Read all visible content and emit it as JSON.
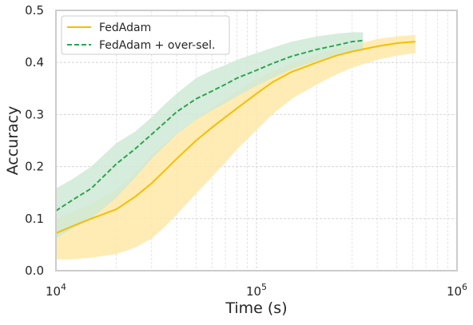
{
  "chart_data": {
    "type": "line",
    "title": "",
    "xlabel": "Time (s)",
    "ylabel": "Accuracy",
    "xscale": "log",
    "xlim": [
      10000,
      1000000
    ],
    "ylim": [
      0,
      0.5
    ],
    "x_ticks": [
      {
        "value": 10000,
        "base": "10",
        "exp": "4"
      },
      {
        "value": 100000,
        "base": "10",
        "exp": "5"
      },
      {
        "value": 1000000,
        "base": "10",
        "exp": "6"
      }
    ],
    "y_ticks": [
      {
        "value": 0.0,
        "label": "0.0"
      },
      {
        "value": 0.1,
        "label": "0.1"
      },
      {
        "value": 0.2,
        "label": "0.2"
      },
      {
        "value": 0.3,
        "label": "0.3"
      },
      {
        "value": 0.4,
        "label": "0.4"
      },
      {
        "value": 0.5,
        "label": "0.5"
      }
    ],
    "grid": true,
    "legend_position": "top-left",
    "series": [
      {
        "name": "FedAdam",
        "color": "#f6be00",
        "linestyle": "solid",
        "x": [
          10000,
          12000,
          15000,
          20000,
          25000,
          30000,
          35000,
          40000,
          50000,
          60000,
          70000,
          80000,
          100000,
          120000,
          150000,
          200000,
          250000,
          300000,
          400000,
          500000,
          620000
        ],
        "y": [
          0.072,
          0.085,
          0.1,
          0.118,
          0.143,
          0.168,
          0.193,
          0.215,
          0.25,
          0.275,
          0.295,
          0.312,
          0.34,
          0.362,
          0.382,
          0.4,
          0.413,
          0.421,
          0.431,
          0.437,
          0.44
        ],
        "y_lower": [
          0.022,
          0.022,
          0.025,
          0.032,
          0.045,
          0.062,
          0.085,
          0.108,
          0.148,
          0.18,
          0.208,
          0.233,
          0.27,
          0.3,
          0.33,
          0.358,
          0.377,
          0.39,
          0.405,
          0.413,
          0.418
        ],
        "y_upper": [
          0.1,
          0.112,
          0.128,
          0.155,
          0.188,
          0.222,
          0.245,
          0.262,
          0.292,
          0.312,
          0.33,
          0.345,
          0.368,
          0.383,
          0.398,
          0.415,
          0.426,
          0.433,
          0.445,
          0.45,
          0.453
        ]
      },
      {
        "name": "FedAdam + over-sel.",
        "color": "#2ca44f",
        "linestyle": "dashed",
        "x": [
          10000,
          12000,
          15000,
          20000,
          25000,
          30000,
          35000,
          40000,
          50000,
          60000,
          70000,
          80000,
          100000,
          120000,
          150000,
          200000,
          250000,
          300000,
          340000
        ],
        "y": [
          0.115,
          0.135,
          0.158,
          0.205,
          0.235,
          0.262,
          0.285,
          0.305,
          0.33,
          0.345,
          0.358,
          0.37,
          0.385,
          0.398,
          0.412,
          0.425,
          0.433,
          0.44,
          0.442
        ],
        "y_lower": [
          0.062,
          0.08,
          0.1,
          0.14,
          0.18,
          0.215,
          0.24,
          0.262,
          0.29,
          0.308,
          0.322,
          0.335,
          0.355,
          0.37,
          0.387,
          0.403,
          0.413,
          0.42,
          0.423
        ],
        "y_upper": [
          0.158,
          0.175,
          0.2,
          0.245,
          0.268,
          0.295,
          0.32,
          0.34,
          0.37,
          0.385,
          0.395,
          0.405,
          0.418,
          0.428,
          0.44,
          0.45,
          0.455,
          0.458,
          0.458
        ]
      }
    ]
  }
}
